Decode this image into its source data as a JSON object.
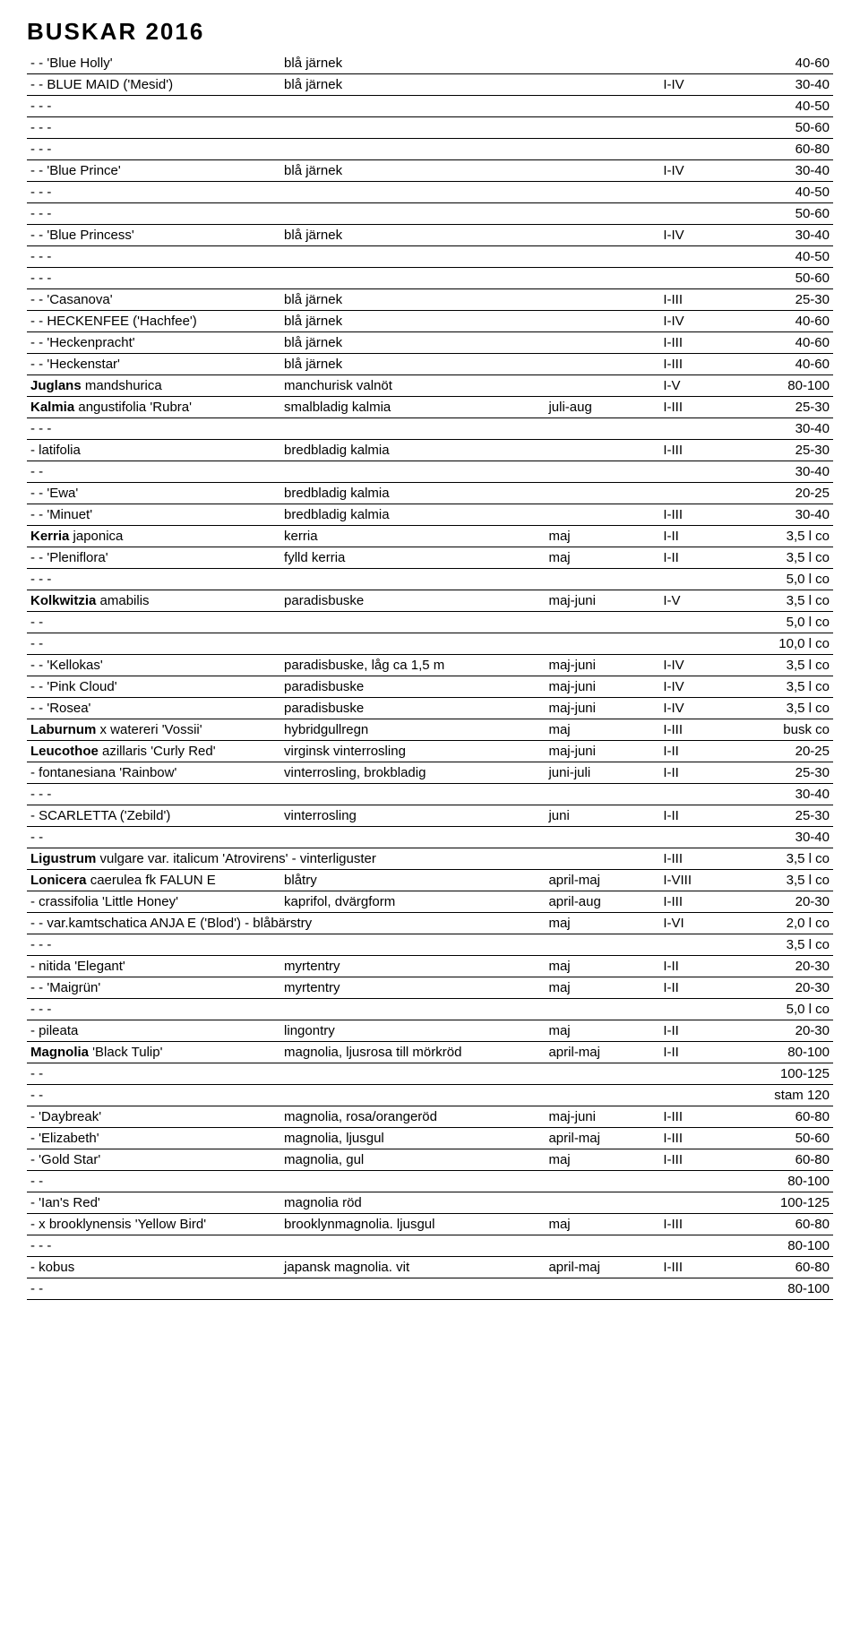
{
  "title": "BUSKAR  2016",
  "rows": [
    {
      "c1": "- -  'Blue Holly'",
      "c2": "blå järnek",
      "c3": "",
      "c4": "",
      "c5": "40-60"
    },
    {
      "c1": "- -  BLUE MAID ('Mesid')",
      "c1_sc": true,
      "c2": "blå järnek",
      "c3": "",
      "c4": "I-IV",
      "c5": "30-40"
    },
    {
      "c1": "- - -",
      "c2": "",
      "c3": "",
      "c4": "",
      "c5": "40-50"
    },
    {
      "c1": "- - -",
      "c2": "",
      "c3": "",
      "c4": "",
      "c5": "50-60"
    },
    {
      "c1": "- - -",
      "c2": "",
      "c3": "",
      "c4": "",
      "c5": "60-80"
    },
    {
      "c1": "- -  'Blue Prince'",
      "c2": "blå järnek",
      "c3": "",
      "c4": "I-IV",
      "c5": "30-40"
    },
    {
      "c1": "- - -",
      "c2": "",
      "c3": "",
      "c4": "",
      "c5": "40-50"
    },
    {
      "c1": "- - -",
      "c2": "",
      "c3": "",
      "c4": "",
      "c5": "50-60"
    },
    {
      "c1": "- -  'Blue Princess'",
      "c2": "blå järnek",
      "c3": "",
      "c4": "I-IV",
      "c5": "30-40"
    },
    {
      "c1": "- - -",
      "c2": "",
      "c3": "",
      "c4": "",
      "c5": "40-50"
    },
    {
      "c1": "- - -",
      "c2": "",
      "c3": "",
      "c4": "",
      "c5": "50-60"
    },
    {
      "c1": "- -  'Casanova'",
      "c2": "blå järnek",
      "c3": "",
      "c4": "I-III",
      "c5": "25-30"
    },
    {
      "c1": "- -  HECKENFEE ('Hachfee')",
      "c1_sc": true,
      "c2": "blå järnek",
      "c3": "",
      "c4": "I-IV",
      "c5": "40-60"
    },
    {
      "c1": "- -  'Heckenpracht'",
      "c2": "blå järnek",
      "c3": "",
      "c4": "I-III",
      "c5": "40-60"
    },
    {
      "c1": "- -  'Heckenstar'",
      "c2": "blå järnek",
      "c3": "",
      "c4": "I-III",
      "c5": "40-60"
    },
    {
      "c1": "Juglans mandshurica",
      "c1_bold": "Juglans",
      "c2": "manchurisk valnöt",
      "c3": "",
      "c4": "I-V",
      "c5": "80-100"
    },
    {
      "c1": "Kalmia angustifolia 'Rubra'",
      "c1_bold": "Kalmia",
      "c2": "smalbladig kalmia",
      "c3": "juli-aug",
      "c4": "I-III",
      "c5": "25-30"
    },
    {
      "c1": "- - -",
      "c2": "",
      "c3": "",
      "c4": "",
      "c5": "30-40"
    },
    {
      "c1": "-  latifolia",
      "c2": "bredbladig kalmia",
      "c3": "",
      "c4": "I-III",
      "c5": "25-30"
    },
    {
      "c1": "- -",
      "c2": "",
      "c3": "",
      "c4": "",
      "c5": "30-40"
    },
    {
      "c1": "- -  'Ewa'",
      "c2": "bredbladig kalmia",
      "c3": "",
      "c4": "",
      "c5": "20-25"
    },
    {
      "c1": "- -  'Minuet'",
      "c2": "bredbladig kalmia",
      "c3": "",
      "c4": "I-III",
      "c5": "30-40"
    },
    {
      "c1": "Kerria japonica",
      "c1_bold": "Kerria",
      "c2": "kerria",
      "c3": "maj",
      "c4": "I-II",
      "c5": "3,5 l co"
    },
    {
      "c1": "- -  'Pleniflora'",
      "c2": "fylld kerria",
      "c3": "maj",
      "c4": "I-II",
      "c5": "3,5 l co"
    },
    {
      "c1": "- - -",
      "c2": "",
      "c3": "",
      "c4": "",
      "c5": "5,0 l co"
    },
    {
      "c1": "Kolkwitzia amabilis",
      "c1_bold": "Kolkwitzia",
      "c2": "paradisbuske",
      "c3": "maj-juni",
      "c4": "I-V",
      "c5": "3,5 l co"
    },
    {
      "c1": "- -",
      "c2": "",
      "c3": "",
      "c4": "",
      "c5": "5,0 l co"
    },
    {
      "c1": "- -",
      "c2": "",
      "c3": "",
      "c4": "",
      "c5": "10,0 l co"
    },
    {
      "c1": "- -  'Kellokas'",
      "c2": "paradisbuske, låg ca 1,5 m",
      "c3": "maj-juni",
      "c4": "I-IV",
      "c5": "3,5 l co"
    },
    {
      "c1": "- -  'Pink Cloud'",
      "c2": "paradisbuske",
      "c3": "maj-juni",
      "c4": "I-IV",
      "c5": "3,5 l co"
    },
    {
      "c1": "- -  'Rosea'",
      "c2": "paradisbuske",
      "c3": "maj-juni",
      "c4": "I-IV",
      "c5": "3,5 l co"
    },
    {
      "c1": "Laburnum x watereri 'Vossii'",
      "c1_bold": "Laburnum",
      "c2": "hybridgullregn",
      "c3": "maj",
      "c4": "I-III",
      "c5": "busk co"
    },
    {
      "c1": "Leucothoe azillaris 'Curly Red'",
      "c1_bold": "Leucothoe",
      "c2": "virginsk vinterrosling",
      "c3": "maj-juni",
      "c4": "I-II",
      "c5": "20-25"
    },
    {
      "c1": "-   fontanesiana 'Rainbow'",
      "c2": "vinterrosling, brokbladig",
      "c3": "juni-juli",
      "c4": "I-II",
      "c5": "25-30"
    },
    {
      "c1": "- - -",
      "c2": "",
      "c3": "",
      "c4": "",
      "c5": "30-40"
    },
    {
      "c1": "-   SCARLETTA ('Zebild')",
      "c1_sc": true,
      "c2": "vinterrosling",
      "c3": "juni",
      "c4": "I-II",
      "c5": "25-30"
    },
    {
      "c1": "- -",
      "c2": "",
      "c3": "",
      "c4": "",
      "c5": "30-40"
    },
    {
      "c1": "Ligustrum vulgare var. italicum 'Atrovirens'   -   vinterliguster",
      "c1_bold": "Ligustrum",
      "c2": "",
      "c3": "",
      "c4": "I-III",
      "c5": "3,5 l co",
      "span12": true
    },
    {
      "c1": "Lonicera caerulea fk FALUN E",
      "c1_bold": "Lonicera",
      "c1_sc_tail": "FALUN",
      "c2": "blåtry",
      "c3": "april-maj",
      "c4": "I-VIII",
      "c5": "3,5 l co"
    },
    {
      "c1": "-  crassifolia 'Little Honey'",
      "c2": "kaprifol, dvärgform",
      "c3": "april-aug",
      "c4": "I-III",
      "c5": "20-30"
    },
    {
      "c1": "- -  var.kamtschatica ANJA E ('Blod')  -  blåbärstry",
      "c1_sc_tail": "ANJA",
      "c2": "",
      "c3": "maj",
      "c4": "I-VI",
      "c5": "2,0 l co",
      "span12": true
    },
    {
      "c1": "- - -",
      "c2": "",
      "c3": "",
      "c4": "",
      "c5": "3,5 l co"
    },
    {
      "c1": "-  nitida 'Elegant'",
      "c2": "myrtentry",
      "c3": "maj",
      "c4": "I-II",
      "c5": "20-30"
    },
    {
      "c1": "- -  'Maigrün'",
      "c2": "myrtentry",
      "c3": "maj",
      "c4": "I-II",
      "c5": "20-30"
    },
    {
      "c1": "- - -",
      "c2": "",
      "c3": "",
      "c4": "",
      "c5": "5,0 l co"
    },
    {
      "c1": "-  pileata",
      "c2": "lingontry",
      "c3": "maj",
      "c4": "I-II",
      "c5": "20-30"
    },
    {
      "c1": "Magnolia 'Black Tulip'",
      "c1_bold": "Magnolia",
      "c2": "magnolia, ljusrosa till mörkröd",
      "c3": "april-maj",
      "c4": "I-II",
      "c5": "80-100"
    },
    {
      "c1": "- -",
      "c2": "",
      "c3": "",
      "c4": "",
      "c5": "100-125"
    },
    {
      "c1": "- -",
      "c2": "",
      "c3": "",
      "c4": "",
      "c5": "stam 120"
    },
    {
      "c1": "-   'Daybreak'",
      "c2": "magnolia, rosa/orangeröd",
      "c3": "maj-juni",
      "c4": "I-III",
      "c5": "60-80"
    },
    {
      "c1": "-   'Elizabeth'",
      "c2": "magnolia, ljusgul",
      "c3": "april-maj",
      "c4": "I-III",
      "c5": "50-60"
    },
    {
      "c1": "-   'Gold Star'",
      "c2": "magnolia, gul",
      "c3": "maj",
      "c4": "I-III",
      "c5": "60-80"
    },
    {
      "c1": "- -",
      "c2": "",
      "c3": "",
      "c4": "",
      "c5": "80-100"
    },
    {
      "c1": "-   'Ian's Red'",
      "c2": "magnolia röd",
      "c3": "",
      "c4": "",
      "c5": "100-125"
    },
    {
      "c1": "-  x brooklynensis 'Yellow Bird'",
      "c2": "brooklynmagnolia. ljusgul",
      "c3": "maj",
      "c4": "I-III",
      "c5": "60-80"
    },
    {
      "c1": "- - -",
      "c2": "",
      "c3": "",
      "c4": "",
      "c5": "80-100"
    },
    {
      "c1": "-   kobus",
      "c2": "japansk magnolia. vit",
      "c3": "april-maj",
      "c4": "I-III",
      "c5": "60-80"
    },
    {
      "c1": "- -",
      "c2": "",
      "c3": "",
      "c4": "",
      "c5": "80-100"
    }
  ]
}
